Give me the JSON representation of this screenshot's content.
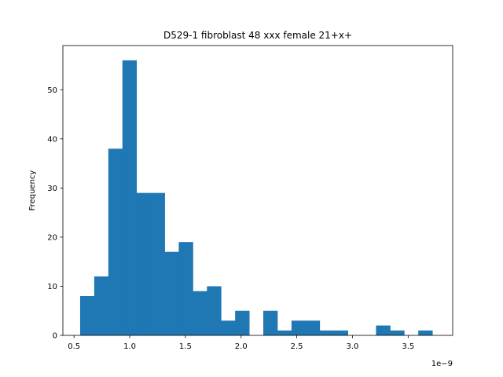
{
  "chart_data": {
    "type": "bar",
    "title": "D529-1 fibroblast 48 xxx female 21+x+",
    "xlabel": "",
    "ylabel": "Frequency",
    "x_offset_label": "1e−9",
    "bar_color": "#1f77b4",
    "xlim": [
      0.4,
      3.9
    ],
    "ylim": [
      0,
      59
    ],
    "x_ticks": [
      0.5,
      1.0,
      1.5,
      2.0,
      2.5,
      3.0,
      3.5
    ],
    "x_tick_labels": [
      "0.5",
      "1.0",
      "1.5",
      "2.0",
      "2.5",
      "3.0",
      "3.5"
    ],
    "y_ticks": [
      0,
      10,
      20,
      30,
      40,
      50
    ],
    "y_tick_labels": [
      "0",
      "10",
      "20",
      "30",
      "40",
      "50"
    ],
    "bin_start": 0.555,
    "bin_width": 0.1265,
    "values": [
      8,
      12,
      38,
      56,
      29,
      29,
      17,
      19,
      9,
      10,
      3,
      5,
      0,
      5,
      1,
      3,
      3,
      1,
      1,
      0,
      0,
      2,
      1,
      0,
      1
    ],
    "grid": false
  }
}
